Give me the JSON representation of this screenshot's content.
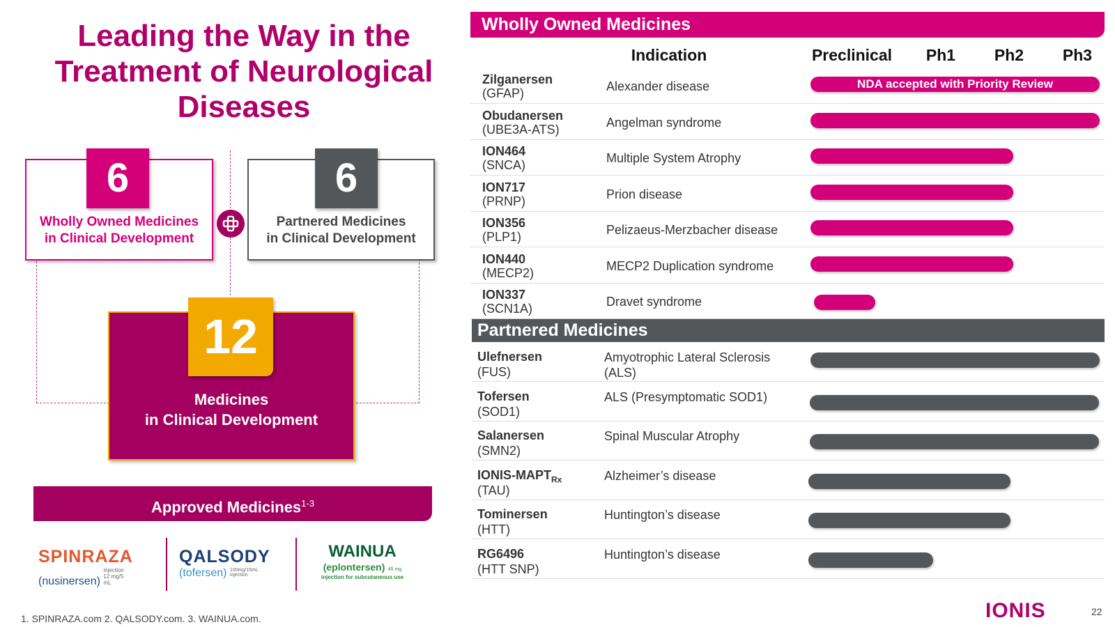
{
  "title": "Leading the Way in the Treatment of Neurological Diseases",
  "summary": {
    "wholly_owned": {
      "count": 6,
      "line1": "Wholly Owned Medicines",
      "line2": "in Clinical Development"
    },
    "partnered": {
      "count": 6,
      "line1": "Partnered Medicines",
      "line2": "in Clinical Development"
    },
    "total": {
      "count": 12,
      "line1": "Medicines",
      "line2": "in Clinical Development"
    }
  },
  "approved": {
    "heading": "Approved Medicines",
    "superscript": "1-3",
    "products": [
      {
        "name": "SPINRAZA",
        "generic": "(nusinersen)",
        "detail": "injection 12 mg/5 mL"
      },
      {
        "name": "QALSODY",
        "generic": "(tofersen)",
        "detail": "100mg/15mL injection"
      },
      {
        "name": "WAINUA",
        "generic": "(eplontersen)",
        "dose": "45 mg",
        "detail": "injection for subcutaneous use"
      }
    ]
  },
  "footnote": "1. SPINRAZA.com 2. QALSODY.com. 3. WAINUA.com.",
  "pipeline": {
    "headers": [
      "Indication",
      "Preclinical",
      "Ph1",
      "Ph2",
      "Ph3"
    ],
    "wholly_owned": {
      "heading": "Wholly Owned Medicines",
      "note": "NDA accepted with Priority Review",
      "rows": [
        {
          "name": "Zilganersen",
          "target": "(GFAP)",
          "indication": "Alexander disease"
        },
        {
          "name": "Obudanersen",
          "target": "(UBE3A-ATS)",
          "indication": "Angelman syndrome"
        },
        {
          "name": "ION464",
          "target": "(SNCA)",
          "indication": "Multiple System Atrophy"
        },
        {
          "name": "ION717",
          "target": "(PRNP)",
          "indication": "Prion disease"
        },
        {
          "name": "ION356",
          "target": "(PLP1)",
          "indication": "Pelizaeus-Merzbacher disease"
        },
        {
          "name": "ION440",
          "target": "(MECP2)",
          "indication": "MECP2 Duplication syndrome"
        },
        {
          "name": "ION337",
          "target": "(SCN1A)",
          "indication": "Dravet syndrome"
        }
      ]
    },
    "partnered": {
      "heading": "Partnered Medicines",
      "rows": [
        {
          "name": "Ulefnersen",
          "target": "(FUS)",
          "indication": "Amyotrophic Lateral Sclerosis (ALS)"
        },
        {
          "name": "Tofersen",
          "target": "(SOD1)",
          "indication": "ALS (Presymptomatic SOD1)"
        },
        {
          "name": "Salanersen",
          "target": "(SMN2)",
          "indication": "Spinal Muscular Atrophy"
        },
        {
          "name": "IONIS-MAPT",
          "subscript": "Rx",
          "target": "(TAU)",
          "indication": "Alzheimer’s disease"
        },
        {
          "name": "Tominersen",
          "target": "(HTT)",
          "indication": "Huntington’s disease"
        },
        {
          "name": "RG6496",
          "target": "(HTT SNP)",
          "indication": "Huntington’s disease"
        }
      ]
    }
  },
  "logo": "IONIS",
  "page_number": 22
}
